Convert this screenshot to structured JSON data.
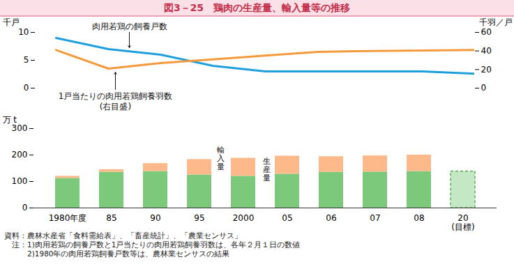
{
  "chart_data": [
    {
      "type": "line",
      "title": "図3－25　鶏肉の生産量、輸入量等の推移",
      "categories": [
        "1980年度",
        "85",
        "90",
        "95",
        "2000",
        "05",
        "06",
        "07",
        "08"
      ],
      "tick_labels": "y",
      "ylabel": "千戸",
      "y2label": "千羽／戸",
      "ylim": [
        0,
        10
      ],
      "yticks": [
        0,
        5,
        10
      ],
      "y2lim": [
        0,
        60
      ],
      "y2ticks": [
        0,
        20,
        40,
        60
      ],
      "series": [
        {
          "name": "肉用若鶏の飼養戸数",
          "color": "#1e9fdc",
          "values": [
            9,
            7,
            6,
            4,
            3,
            3,
            3,
            3,
            2.6
          ]
        },
        {
          "name": "1戸当たりの肉用若鶏飼養羽数",
          "color": "#f59a3c",
          "axis": "y2",
          "values": [
            41,
            21,
            27,
            31,
            35,
            39,
            40,
            40.5,
            41
          ]
        }
      ],
      "annotations": [
        "(右目盛)"
      ]
    },
    {
      "type": "bar",
      "stacked": true,
      "categories": [
        "1980年度",
        "85",
        "90",
        "95",
        "2000",
        "05",
        "06",
        "07",
        "08",
        "20\n(目標)"
      ],
      "ylabel": "万 t",
      "ylim": [
        0,
        300
      ],
      "yticks": [
        0,
        100,
        200,
        300
      ],
      "series": [
        {
          "name": "生産量",
          "color": "#7cc97c",
          "values": [
            112,
            135,
            138,
            125,
            120,
            128,
            135,
            136,
            138,
            null
          ]
        },
        {
          "name": "輸入量",
          "color": "#fdb98a",
          "values": [
            8,
            10,
            30,
            58,
            68,
            68,
            59,
            61,
            62,
            null
          ]
        },
        {
          "color": "#c4e8c4",
          "line_style": "dashed",
          "values": [
            null,
            null,
            null,
            null,
            null,
            null,
            null,
            null,
            null,
            138
          ]
        }
      ],
      "notes": [
        "資料：農林水産省「食料需給表」、「畜産統計」、「農業センサス」",
        "　注：1)肉用若鶏の飼養戸数と1戸当たりの肉用若鶏飼養羽数は、各年２月１日の数値",
        "　　　2)1980年の肉用若鶏飼養戸数等は、農林業センサスの結果"
      ]
    }
  ]
}
